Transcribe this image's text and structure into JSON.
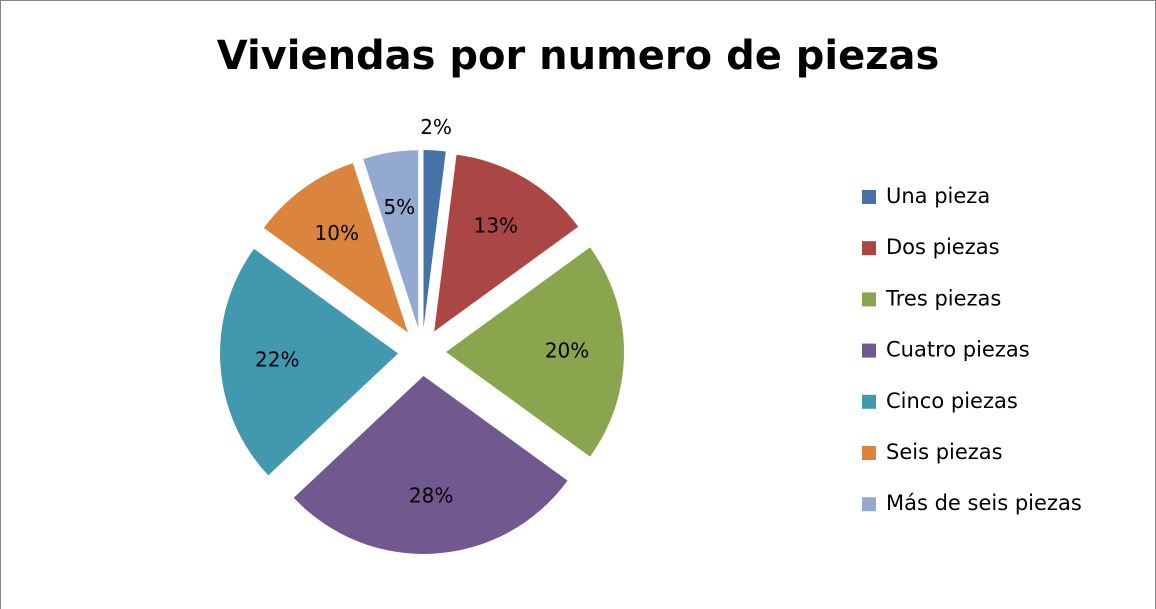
{
  "chart_data": {
    "type": "pie",
    "title": "Viviendas por numero de piezas",
    "categories": [
      "Una pieza",
      "Dos piezas",
      "Tres piezas",
      "Cuatro piezas",
      "Cinco piezas",
      "Seis piezas",
      "Más de seis piezas"
    ],
    "values": [
      2,
      13,
      20,
      28,
      22,
      10,
      5
    ],
    "value_labels": [
      "2%",
      "13%",
      "20%",
      "28%",
      "22%",
      "10%",
      "5%"
    ],
    "colors": [
      "#4572A7",
      "#AA4643",
      "#89A54E",
      "#71588F",
      "#4198AF",
      "#DB843D",
      "#93A9CF"
    ],
    "legend": "right"
  }
}
